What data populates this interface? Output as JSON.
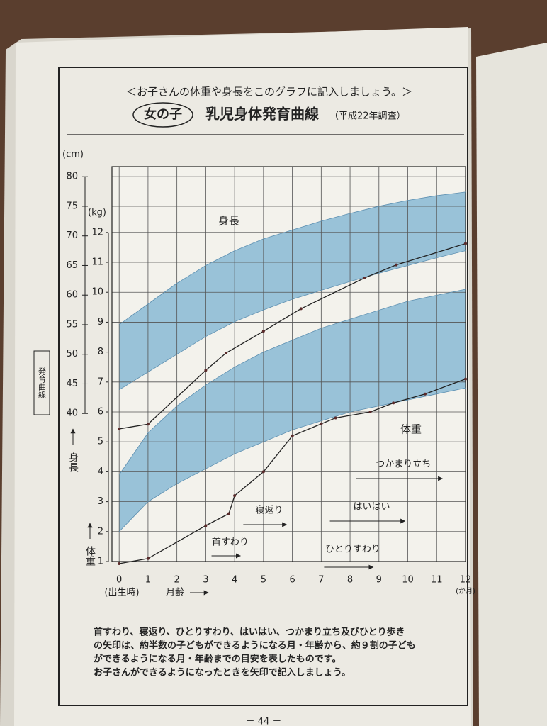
{
  "header": "＜お子さんの体重や身長をこのグラフに記入しましょう。＞",
  "side_tab": "発育曲線",
  "chart_data": {
    "type": "line",
    "badge": "女の子",
    "title": "乳児身体発育曲線",
    "subtitle": "（平成22年調査）",
    "xlabel": "月齢",
    "x_start_label": "(出生時)",
    "x_unit": "(か月)",
    "ylabel": "身長",
    "yunit": "(cm)",
    "y2label": "体重",
    "y2unit": "(kg)",
    "xlim": [
      -0.25,
      12
    ],
    "xticks": [
      0,
      1,
      2,
      3,
      4,
      5,
      6,
      7,
      8,
      9,
      10,
      11,
      12
    ],
    "ylim": [
      15,
      81.7
    ],
    "yticks": [
      40,
      45,
      50,
      55,
      60,
      65,
      70,
      75,
      80
    ],
    "y2lim": [
      1,
      14.2
    ],
    "y2ticks": [
      1,
      2,
      3,
      4,
      5,
      6,
      7,
      8,
      9,
      10,
      11,
      12
    ],
    "grid": true,
    "x": [
      0,
      1,
      2,
      3,
      4,
      5,
      6,
      7,
      8,
      9,
      10,
      11,
      12
    ],
    "series": [
      {
        "name": "身長",
        "kind": "band",
        "axis": "y",
        "color": "#8fbdd6",
        "lower": [
          44,
          47,
          50,
          53,
          55.5,
          57.5,
          59.3,
          60.8,
          62.3,
          63.7,
          65,
          66.3,
          67.5
        ],
        "upper": [
          55,
          58.5,
          62,
          65,
          67.5,
          69.5,
          71,
          72.5,
          73.8,
          75,
          76,
          76.8,
          77.4
        ]
      },
      {
        "name": "体重",
        "kind": "band",
        "axis": "y2",
        "color": "#8fbdd6",
        "lower": [
          2,
          3,
          3.6,
          4.1,
          4.6,
          5,
          5.4,
          5.7,
          6,
          6.2,
          6.4,
          6.6,
          6.8
        ],
        "upper": [
          3.9,
          5.3,
          6.2,
          6.9,
          7.5,
          8,
          8.4,
          8.8,
          9.1,
          9.4,
          9.7,
          9.9,
          10.1
        ]
      },
      {
        "kind": "line",
        "axis": "y",
        "color": "#222",
        "x": [
          0,
          1,
          3,
          3.7,
          5,
          6.3,
          8.5,
          9.6,
          12
        ],
        "values": [
          37.4,
          38.2,
          47.3,
          50.2,
          53.9,
          57.7,
          62.9,
          65.1,
          68.7
        ]
      },
      {
        "kind": "line",
        "axis": "y2",
        "color": "#222",
        "x": [
          0,
          1,
          3,
          3.8,
          4,
          5,
          6,
          7,
          7.5,
          8.7,
          9.5,
          10.6,
          12
        ],
        "values": [
          0.93,
          1.1,
          2.2,
          2.6,
          3.2,
          4,
          5.2,
          5.6,
          5.8,
          6,
          6.3,
          6.6,
          7.1
        ]
      }
    ],
    "milestones": [
      {
        "label": "首すわり",
        "start": 3.2,
        "end": 4.2
      },
      {
        "label": "寝返り",
        "start": 4.3,
        "end": 5.8
      },
      {
        "label": "ひとりすわり",
        "start": 7.1,
        "end": 8.8
      },
      {
        "label": "はいはい",
        "start": 7.3,
        "end": 9.9
      },
      {
        "label": "つかまり立ち",
        "start": 8.2,
        "end": 11.2
      }
    ]
  },
  "footnote": [
    "首すわり、寝返り、ひとりすわり、はいはい、つかまり立ち及びひとり歩き",
    "の矢印は、約半数の子どもができるようになる月・年齢から、約９割の子ども",
    "ができるようになる月・年齢までの目安を表したものです。",
    "お子さんができるようになったときを矢印で記入しましょう。"
  ],
  "page_number": "－ 44 －"
}
